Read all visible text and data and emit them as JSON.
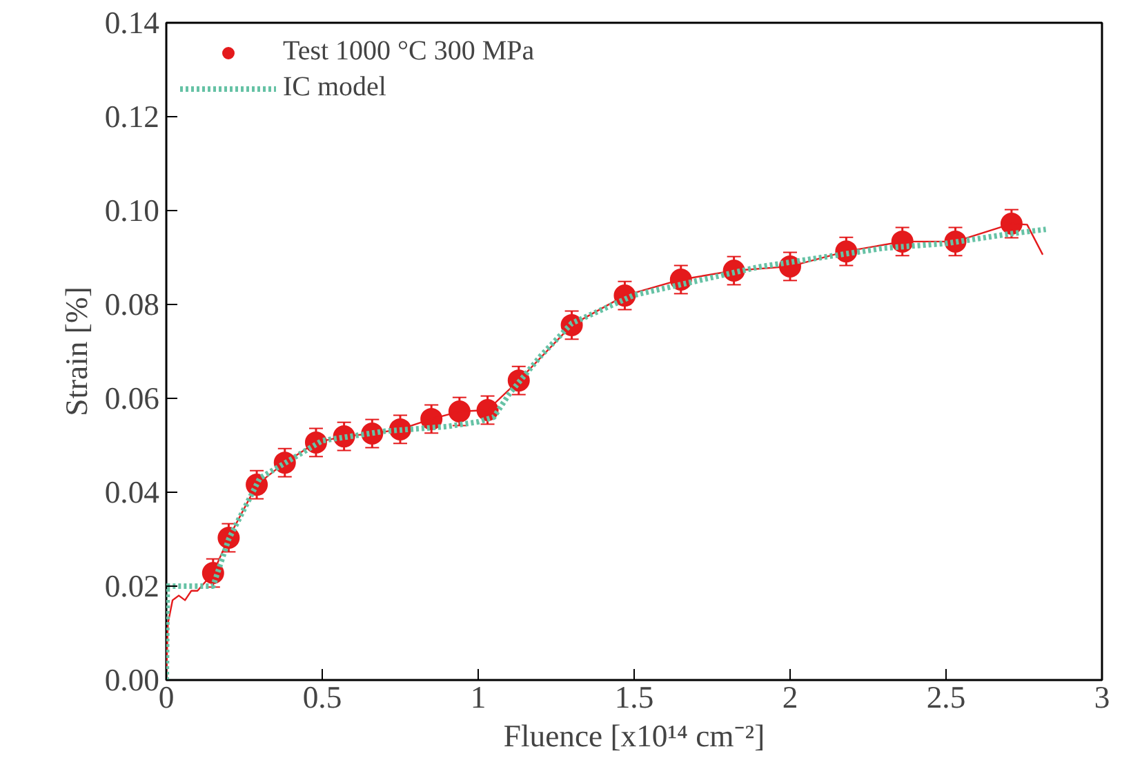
{
  "chart_data": {
    "type": "scatter",
    "xlabel": "Fluence [x10¹⁴ cm⁻²]",
    "ylabel": "Strain [%]",
    "xlim": [
      0,
      3
    ],
    "xticks": [
      0,
      0.5,
      1,
      1.5,
      2,
      2.5,
      3
    ],
    "ylim": [
      0,
      0.14
    ],
    "yticks": [
      {
        "value": 0,
        "label": "0.00"
      },
      {
        "value": 0.02,
        "label": "0.02"
      },
      {
        "value": 0.04,
        "label": "0.04"
      },
      {
        "value": 0.06,
        "label": "0.06"
      },
      {
        "value": 0.08,
        "label": "0.08"
      },
      {
        "value": 0.1,
        "label": "0.10"
      },
      {
        "value": 0.12,
        "label": "0.12"
      },
      {
        "value": 0.14,
        "label": "0.14"
      }
    ],
    "legend": "top left",
    "grid": false,
    "series": [
      {
        "name": "Test 1000 °C 300 MPa",
        "marker": "circle",
        "color": "#e41a1c",
        "x": [
          0.15,
          0.2,
          0.29,
          0.38,
          0.48,
          0.57,
          0.66,
          0.75,
          0.85,
          0.94,
          1.03,
          1.13,
          1.3,
          1.47,
          1.65,
          1.82,
          2.0,
          2.18,
          2.36,
          2.53,
          2.71
        ],
        "values": [
          0.0228,
          0.0303,
          0.0416,
          0.0463,
          0.0506,
          0.0519,
          0.0525,
          0.0534,
          0.0556,
          0.0572,
          0.0575,
          0.0638,
          0.0756,
          0.0819,
          0.0853,
          0.0872,
          0.0881,
          0.0913,
          0.0934,
          0.0934,
          0.0972
        ],
        "errors": [
          0.003,
          0.003,
          0.003,
          0.003,
          0.003,
          0.003,
          0.003,
          0.003,
          0.003,
          0.003,
          0.003,
          0.003,
          0.003,
          0.003,
          0.003,
          0.003,
          0.003,
          0.003,
          0.003,
          0.003,
          0.003
        ]
      },
      {
        "type": "line",
        "line_style": "solid",
        "color": "#e41a1c",
        "x": [
          0,
          0.005,
          0.02,
          0.04,
          0.06,
          0.08,
          0.1,
          0.15,
          0.2,
          0.29,
          0.38,
          0.48,
          0.57,
          0.66,
          0.75,
          0.85,
          0.94,
          1.03,
          1.13,
          1.3,
          1.47,
          1.65,
          1.82,
          2.0,
          2.18,
          2.36,
          2.53,
          2.71,
          2.76,
          2.81
        ],
        "values": [
          0,
          0.012,
          0.017,
          0.018,
          0.017,
          0.019,
          0.019,
          0.0228,
          0.0303,
          0.0416,
          0.0463,
          0.0506,
          0.0519,
          0.0525,
          0.0534,
          0.0556,
          0.0572,
          0.0575,
          0.0638,
          0.0756,
          0.0819,
          0.0853,
          0.0872,
          0.0881,
          0.0913,
          0.0934,
          0.0934,
          0.0972,
          0.097,
          0.0906
        ]
      },
      {
        "name": "IC model",
        "type": "line",
        "line_style": "dotted",
        "color": "#66c2a5",
        "x": [
          0,
          0.003,
          0.15,
          0.2,
          0.3,
          0.4,
          0.5,
          0.7,
          0.9,
          1.0,
          1.05,
          1.1,
          1.2,
          1.3,
          1.5,
          1.7,
          1.9,
          2.1,
          2.3,
          2.5,
          2.7,
          2.82
        ],
        "values": [
          0,
          0.02,
          0.02,
          0.03,
          0.043,
          0.047,
          0.051,
          0.053,
          0.054,
          0.055,
          0.056,
          0.061,
          0.069,
          0.076,
          0.082,
          0.085,
          0.088,
          0.09,
          0.092,
          0.093,
          0.095,
          0.096
        ]
      }
    ]
  }
}
